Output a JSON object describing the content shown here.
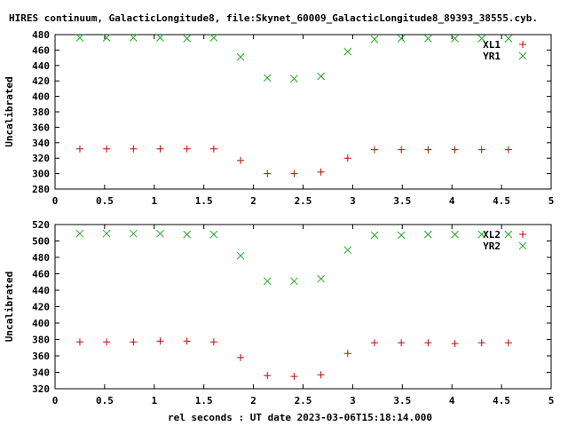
{
  "title": "HIRES continuum, GalacticLongitude8, file:Skynet_60009_GalacticLongitude8_89393_38555.cyb.",
  "xlabel": "rel seconds : UT date 2023-03-06T15:18:14.000",
  "colors": {
    "series_a": "#cc0000",
    "series_b": "#22aa22"
  },
  "chart_data": [
    {
      "type": "scatter",
      "ylabel": "Uncalibrated",
      "xlim": [
        0,
        5
      ],
      "ylim": [
        280,
        480
      ],
      "xticks": [
        0,
        0.5,
        1,
        1.5,
        2,
        2.5,
        3,
        3.5,
        4,
        4.5,
        5
      ],
      "xticklabels": [
        "0",
        "0.5",
        "1",
        "1.5",
        "2",
        "2.5",
        "3",
        "3.5",
        "4",
        "4.5",
        "5"
      ],
      "yticks": [
        280,
        300,
        320,
        340,
        360,
        380,
        400,
        420,
        440,
        460,
        480
      ],
      "grid": false,
      "legend_position": "top-right",
      "x": [
        0.25,
        0.52,
        0.79,
        1.06,
        1.33,
        1.6,
        1.87,
        2.14,
        2.41,
        2.68,
        2.95,
        3.22,
        3.49,
        3.76,
        4.03,
        4.3,
        4.57
      ],
      "series": [
        {
          "name": "XL1",
          "marker": "plus",
          "values": [
            332,
            332,
            332,
            332,
            332,
            332,
            317,
            300,
            300,
            302,
            320,
            331,
            331,
            331,
            331,
            331,
            331
          ]
        },
        {
          "name": "YR1",
          "marker": "cross",
          "values": [
            476,
            476,
            476,
            476,
            475,
            476,
            451,
            424,
            423,
            426,
            458,
            474,
            475,
            475,
            475,
            475,
            475
          ]
        }
      ]
    },
    {
      "type": "scatter",
      "ylabel": "Uncalibrated",
      "xlim": [
        0,
        5
      ],
      "ylim": [
        320,
        520
      ],
      "xticks": [
        0,
        0.5,
        1,
        1.5,
        2,
        2.5,
        3,
        3.5,
        4,
        4.5,
        5
      ],
      "xticklabels": [
        "0",
        "0.5",
        "1",
        "1.5",
        "2",
        "2.5",
        "3",
        "3.5",
        "4",
        "4.5",
        "5"
      ],
      "yticks": [
        320,
        340,
        360,
        380,
        400,
        420,
        440,
        460,
        480,
        500,
        520
      ],
      "grid": false,
      "legend_position": "top-right",
      "x": [
        0.25,
        0.52,
        0.79,
        1.06,
        1.33,
        1.6,
        1.87,
        2.14,
        2.41,
        2.68,
        2.95,
        3.22,
        3.49,
        3.76,
        4.03,
        4.3,
        4.57
      ],
      "series": [
        {
          "name": "XL2",
          "marker": "plus",
          "values": [
            377,
            377,
            377,
            378,
            378,
            377,
            358,
            336,
            335,
            337,
            363,
            376,
            376,
            376,
            375,
            376,
            376
          ]
        },
        {
          "name": "YR2",
          "marker": "cross",
          "values": [
            509,
            509,
            509,
            509,
            508,
            508,
            482,
            451,
            451,
            454,
            489,
            507,
            507,
            508,
            508,
            508,
            508
          ]
        }
      ]
    }
  ]
}
